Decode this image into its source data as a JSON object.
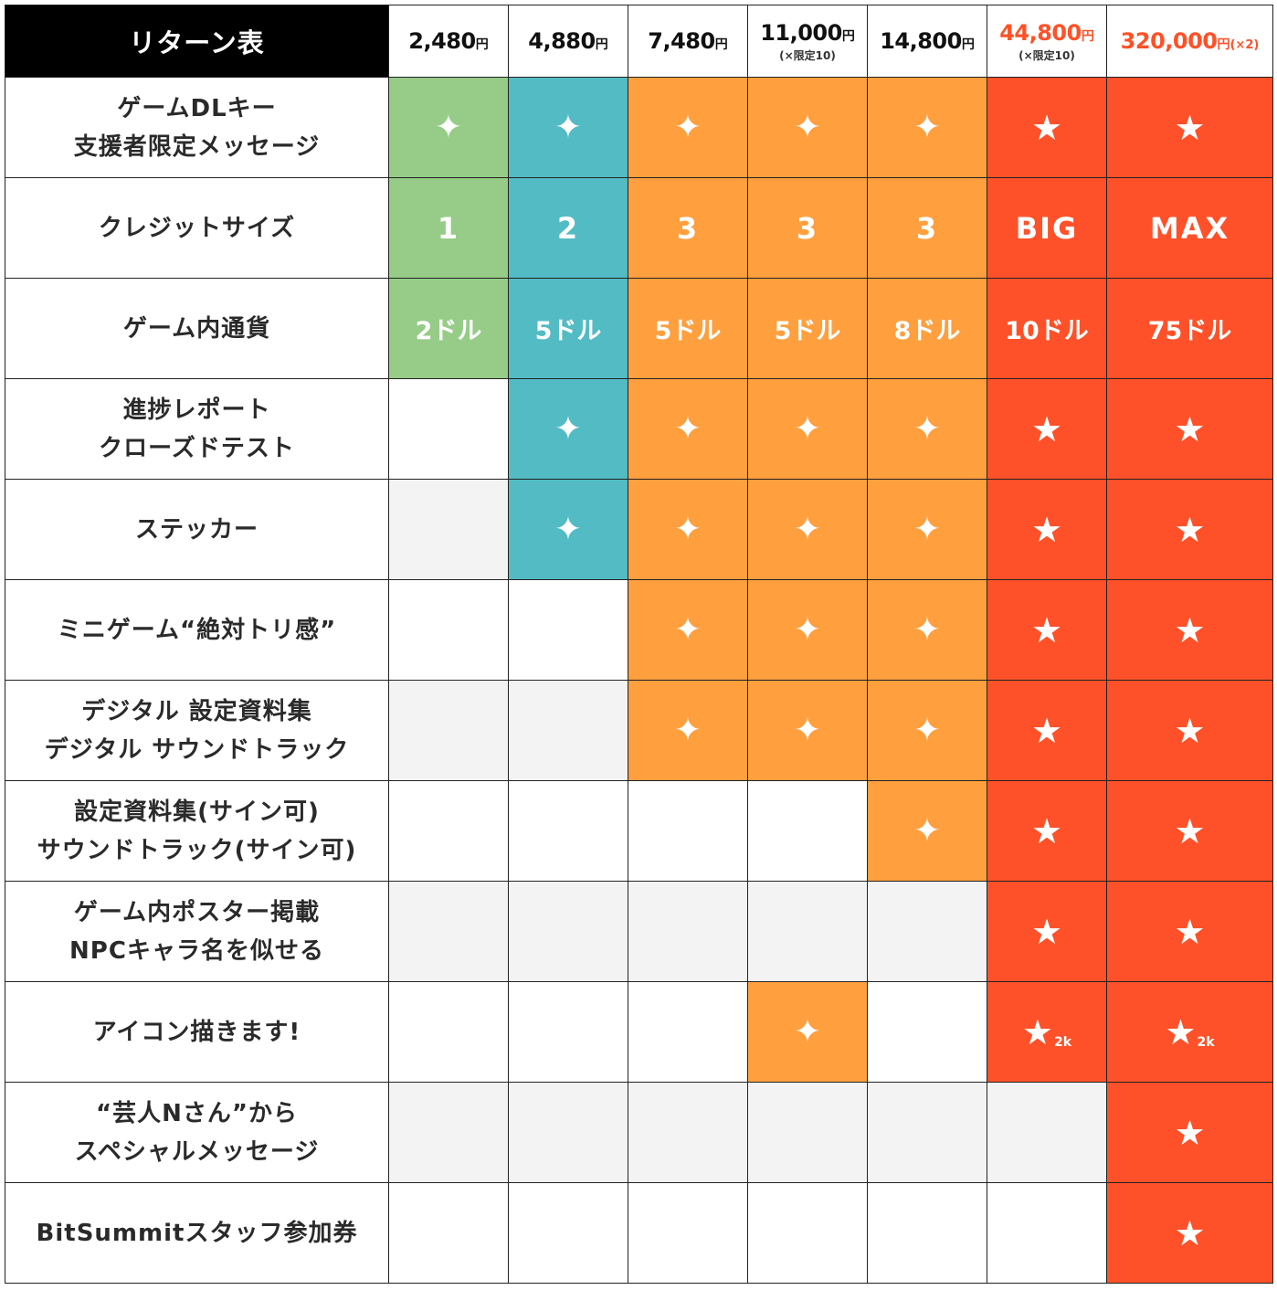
{
  "chart_data": {
    "type": "table",
    "title": "リターン表",
    "tiers": [
      {
        "price": "2,480",
        "yen": "円",
        "note": "",
        "mult": "",
        "highlight": false,
        "color": "#96cc87"
      },
      {
        "price": "4,880",
        "yen": "円",
        "note": "",
        "mult": "",
        "highlight": false,
        "color": "#53bbc4"
      },
      {
        "price": "7,480",
        "yen": "円",
        "note": "",
        "mult": "",
        "highlight": false,
        "color": "#ff9f3e"
      },
      {
        "price": "11,000",
        "yen": "円",
        "note": "(×限定10)",
        "mult": "",
        "highlight": false,
        "color": "#ff9f3e"
      },
      {
        "price": "14,800",
        "yen": "円",
        "note": "",
        "mult": "",
        "highlight": false,
        "color": "#ff9f3e"
      },
      {
        "price": "44,800",
        "yen": "円",
        "note": "(×限定10)",
        "mult": "",
        "highlight": true,
        "color": "#ff5129"
      },
      {
        "price": "320,000",
        "yen": "円",
        "note": "",
        "mult": "(×2)",
        "highlight": true,
        "color": "#ff5129"
      }
    ],
    "rows": [
      {
        "label": [
          "ゲームDLキー",
          "支援者限定メッセージ"
        ],
        "cells": [
          {
            "t": "sparkle",
            "c": "green"
          },
          {
            "t": "sparkle",
            "c": "teal"
          },
          {
            "t": "sparkle",
            "c": "orange"
          },
          {
            "t": "sparkle",
            "c": "orange"
          },
          {
            "t": "sparkle",
            "c": "orange"
          },
          {
            "t": "star",
            "c": "red"
          },
          {
            "t": "star",
            "c": "red"
          }
        ]
      },
      {
        "label": [
          "クレジットサイズ"
        ],
        "cells": [
          {
            "t": "value",
            "v": "1",
            "c": "green"
          },
          {
            "t": "value",
            "v": "2",
            "c": "teal"
          },
          {
            "t": "value",
            "v": "3",
            "c": "orange"
          },
          {
            "t": "value",
            "v": "3",
            "c": "orange"
          },
          {
            "t": "value",
            "v": "3",
            "c": "orange"
          },
          {
            "t": "value",
            "v": "BIG",
            "c": "red"
          },
          {
            "t": "value",
            "v": "MAX",
            "c": "red"
          }
        ]
      },
      {
        "label": [
          "ゲーム内通貨"
        ],
        "cells": [
          {
            "t": "currency",
            "v": "2ドル",
            "c": "green"
          },
          {
            "t": "currency",
            "v": "5ドル",
            "c": "teal"
          },
          {
            "t": "currency",
            "v": "5ドル",
            "c": "orange"
          },
          {
            "t": "currency",
            "v": "5ドル",
            "c": "orange"
          },
          {
            "t": "currency",
            "v": "8ドル",
            "c": "orange"
          },
          {
            "t": "currency",
            "v": "10ドル",
            "c": "red"
          },
          {
            "t": "currency",
            "v": "75ドル",
            "c": "red"
          }
        ]
      },
      {
        "label": [
          "進捗レポート",
          "クローズドテスト"
        ],
        "cells": [
          {
            "t": "empty"
          },
          {
            "t": "sparkle",
            "c": "teal"
          },
          {
            "t": "sparkle",
            "c": "orange"
          },
          {
            "t": "sparkle",
            "c": "orange"
          },
          {
            "t": "sparkle",
            "c": "orange"
          },
          {
            "t": "star",
            "c": "red"
          },
          {
            "t": "star",
            "c": "red"
          }
        ]
      },
      {
        "label": [
          "ステッカー"
        ],
        "cells": [
          {
            "t": "empty"
          },
          {
            "t": "sparkle",
            "c": "teal"
          },
          {
            "t": "sparkle",
            "c": "orange"
          },
          {
            "t": "sparkle",
            "c": "orange"
          },
          {
            "t": "sparkle",
            "c": "orange"
          },
          {
            "t": "star",
            "c": "red"
          },
          {
            "t": "star",
            "c": "red"
          }
        ]
      },
      {
        "label": [
          "ミニゲーム“絶対トリ感”"
        ],
        "cells": [
          {
            "t": "empty"
          },
          {
            "t": "empty"
          },
          {
            "t": "sparkle",
            "c": "orange"
          },
          {
            "t": "sparkle",
            "c": "orange"
          },
          {
            "t": "sparkle",
            "c": "orange"
          },
          {
            "t": "star",
            "c": "red"
          },
          {
            "t": "star",
            "c": "red"
          }
        ]
      },
      {
        "label": [
          "デジタル 設定資料集",
          "デジタル サウンドトラック"
        ],
        "cells": [
          {
            "t": "empty"
          },
          {
            "t": "empty"
          },
          {
            "t": "sparkle",
            "c": "orange"
          },
          {
            "t": "sparkle",
            "c": "orange"
          },
          {
            "t": "sparkle",
            "c": "orange"
          },
          {
            "t": "star",
            "c": "red"
          },
          {
            "t": "star",
            "c": "red"
          }
        ]
      },
      {
        "label": [
          "設定資料集(サイン可)",
          "サウンドトラック(サイン可)"
        ],
        "cells": [
          {
            "t": "empty"
          },
          {
            "t": "empty"
          },
          {
            "t": "empty"
          },
          {
            "t": "empty"
          },
          {
            "t": "sparkle",
            "c": "orange"
          },
          {
            "t": "star",
            "c": "red"
          },
          {
            "t": "star",
            "c": "red"
          }
        ]
      },
      {
        "label": [
          "ゲーム内ポスター掲載",
          "NPCキャラ名を似せる"
        ],
        "cells": [
          {
            "t": "empty"
          },
          {
            "t": "empty"
          },
          {
            "t": "empty"
          },
          {
            "t": "empty"
          },
          {
            "t": "empty"
          },
          {
            "t": "star",
            "c": "red"
          },
          {
            "t": "star",
            "c": "red"
          }
        ]
      },
      {
        "label": [
          "アイコン描きます!"
        ],
        "cells": [
          {
            "t": "empty"
          },
          {
            "t": "empty"
          },
          {
            "t": "empty"
          },
          {
            "t": "sparkle",
            "c": "orange"
          },
          {
            "t": "empty"
          },
          {
            "t": "star",
            "c": "red",
            "sub": "2k"
          },
          {
            "t": "star",
            "c": "red",
            "sub": "2k"
          }
        ]
      },
      {
        "label": [
          "“芸人Nさん”から",
          "スペシャルメッセージ"
        ],
        "cells": [
          {
            "t": "empty"
          },
          {
            "t": "empty"
          },
          {
            "t": "empty"
          },
          {
            "t": "empty"
          },
          {
            "t": "empty"
          },
          {
            "t": "empty"
          },
          {
            "t": "star",
            "c": "red"
          }
        ]
      },
      {
        "label": [
          "BitSummitスタッフ参加券"
        ],
        "cells": [
          {
            "t": "empty"
          },
          {
            "t": "empty"
          },
          {
            "t": "empty"
          },
          {
            "t": "empty"
          },
          {
            "t": "empty"
          },
          {
            "t": "empty"
          },
          {
            "t": "star",
            "c": "red"
          }
        ]
      }
    ],
    "symbols": {
      "sparkle": "✦",
      "star": "★"
    },
    "colors": {
      "green": "#96cc87",
      "teal": "#53bbc4",
      "orange": "#ff9f3e",
      "red": "#ff5129",
      "header": "#000000",
      "price_highlight": "#ff5128"
    }
  }
}
